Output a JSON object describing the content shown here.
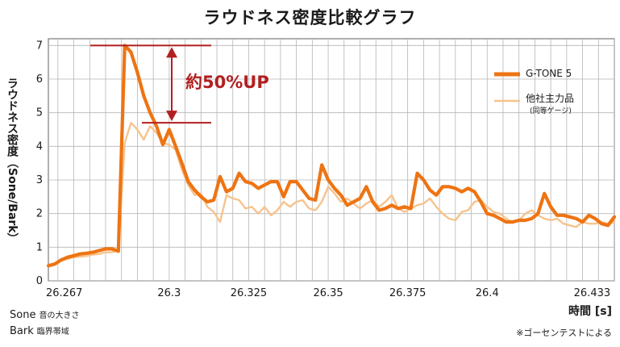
{
  "chart_data": {
    "type": "line",
    "title": "ラウドネス密度比較グラフ",
    "xlabel": "時間 [s]",
    "ylabel": "ラウドネス密度（Sone/Bark）",
    "xlim": [
      26.262,
      26.44
    ],
    "ylim": [
      0,
      7.2
    ],
    "x_ticks": [
      "26.267",
      "26.3",
      "26.325",
      "26.35",
      "26.375",
      "26.4",
      "26.433"
    ],
    "x_tick_values": [
      26.267,
      26.3,
      26.325,
      26.35,
      26.375,
      26.4,
      26.433
    ],
    "y_ticks": [
      "0",
      "1",
      "2",
      "3",
      "4",
      "5",
      "6",
      "7"
    ],
    "grid": true,
    "legend_position": "top-right",
    "annotation": "約50%UP",
    "series": [
      {
        "name": "G-TONE 5",
        "color": "#ee7413",
        "points": [
          [
            26.262,
            0.45
          ],
          [
            26.264,
            0.5
          ],
          [
            26.266,
            0.62
          ],
          [
            26.268,
            0.7
          ],
          [
            26.27,
            0.75
          ],
          [
            26.272,
            0.8
          ],
          [
            26.274,
            0.82
          ],
          [
            26.276,
            0.85
          ],
          [
            26.278,
            0.9
          ],
          [
            26.28,
            0.95
          ],
          [
            26.282,
            0.95
          ],
          [
            26.284,
            0.88
          ],
          [
            26.286,
            7.0
          ],
          [
            26.288,
            6.8
          ],
          [
            26.29,
            6.2
          ],
          [
            26.292,
            5.5
          ],
          [
            26.294,
            5.0
          ],
          [
            26.296,
            4.6
          ],
          [
            26.298,
            4.05
          ],
          [
            26.3,
            4.5
          ],
          [
            26.302,
            4.0
          ],
          [
            26.304,
            3.5
          ],
          [
            26.306,
            2.95
          ],
          [
            26.308,
            2.7
          ],
          [
            26.31,
            2.5
          ],
          [
            26.312,
            2.35
          ],
          [
            26.314,
            2.4
          ],
          [
            26.316,
            3.1
          ],
          [
            26.318,
            2.65
          ],
          [
            26.32,
            2.75
          ],
          [
            26.322,
            3.2
          ],
          [
            26.324,
            2.95
          ],
          [
            26.326,
            2.9
          ],
          [
            26.328,
            2.75
          ],
          [
            26.33,
            2.85
          ],
          [
            26.332,
            2.95
          ],
          [
            26.334,
            2.95
          ],
          [
            26.336,
            2.5
          ],
          [
            26.338,
            2.95
          ],
          [
            26.34,
            2.95
          ],
          [
            26.342,
            2.7
          ],
          [
            26.344,
            2.45
          ],
          [
            26.346,
            2.4
          ],
          [
            26.348,
            3.45
          ],
          [
            26.35,
            3.0
          ],
          [
            26.352,
            2.75
          ],
          [
            26.354,
            2.55
          ],
          [
            26.356,
            2.25
          ],
          [
            26.358,
            2.35
          ],
          [
            26.36,
            2.45
          ],
          [
            26.362,
            2.8
          ],
          [
            26.364,
            2.35
          ],
          [
            26.366,
            2.1
          ],
          [
            26.368,
            2.15
          ],
          [
            26.37,
            2.25
          ],
          [
            26.372,
            2.15
          ],
          [
            26.374,
            2.2
          ],
          [
            26.376,
            2.15
          ],
          [
            26.378,
            3.2
          ],
          [
            26.38,
            3.0
          ],
          [
            26.382,
            2.7
          ],
          [
            26.384,
            2.55
          ],
          [
            26.386,
            2.8
          ],
          [
            26.388,
            2.8
          ],
          [
            26.39,
            2.75
          ],
          [
            26.392,
            2.65
          ],
          [
            26.394,
            2.75
          ],
          [
            26.396,
            2.65
          ],
          [
            26.398,
            2.35
          ],
          [
            26.4,
            2.0
          ],
          [
            26.402,
            1.95
          ],
          [
            26.404,
            1.85
          ],
          [
            26.406,
            1.75
          ],
          [
            26.408,
            1.75
          ],
          [
            26.41,
            1.8
          ],
          [
            26.412,
            1.8
          ],
          [
            26.414,
            1.85
          ],
          [
            26.416,
            2.0
          ],
          [
            26.418,
            2.6
          ],
          [
            26.42,
            2.2
          ],
          [
            26.422,
            1.95
          ],
          [
            26.424,
            1.95
          ],
          [
            26.426,
            1.9
          ],
          [
            26.428,
            1.85
          ],
          [
            26.43,
            1.75
          ],
          [
            26.432,
            1.95
          ],
          [
            26.434,
            1.85
          ],
          [
            26.436,
            1.7
          ],
          [
            26.438,
            1.65
          ],
          [
            26.44,
            1.9
          ]
        ]
      },
      {
        "name": "他社主力品",
        "name_note": "(同等ゲージ)",
        "color": "#f6c38e",
        "points": [
          [
            26.262,
            0.45
          ],
          [
            26.264,
            0.5
          ],
          [
            26.266,
            0.6
          ],
          [
            26.268,
            0.65
          ],
          [
            26.27,
            0.7
          ],
          [
            26.272,
            0.72
          ],
          [
            26.274,
            0.74
          ],
          [
            26.276,
            0.78
          ],
          [
            26.278,
            0.8
          ],
          [
            26.28,
            0.85
          ],
          [
            26.282,
            0.85
          ],
          [
            26.284,
            0.9
          ],
          [
            26.286,
            4.1
          ],
          [
            26.288,
            4.7
          ],
          [
            26.29,
            4.5
          ],
          [
            26.292,
            4.2
          ],
          [
            26.294,
            4.6
          ],
          [
            26.296,
            4.4
          ],
          [
            26.298,
            4.1
          ],
          [
            26.3,
            4.05
          ],
          [
            26.302,
            3.9
          ],
          [
            26.304,
            3.3
          ],
          [
            26.306,
            2.85
          ],
          [
            26.308,
            2.55
          ],
          [
            26.31,
            2.6
          ],
          [
            26.312,
            2.2
          ],
          [
            26.314,
            2.05
          ],
          [
            26.316,
            1.75
          ],
          [
            26.318,
            2.55
          ],
          [
            26.32,
            2.45
          ],
          [
            26.322,
            2.4
          ],
          [
            26.324,
            2.15
          ],
          [
            26.326,
            2.2
          ],
          [
            26.328,
            2.0
          ],
          [
            26.33,
            2.2
          ],
          [
            26.332,
            1.95
          ],
          [
            26.334,
            2.1
          ],
          [
            26.336,
            2.35
          ],
          [
            26.338,
            2.2
          ],
          [
            26.34,
            2.35
          ],
          [
            26.342,
            2.4
          ],
          [
            26.344,
            2.15
          ],
          [
            26.346,
            2.1
          ],
          [
            26.348,
            2.35
          ],
          [
            26.35,
            2.8
          ],
          [
            26.352,
            2.6
          ],
          [
            26.354,
            2.35
          ],
          [
            26.356,
            2.45
          ],
          [
            26.358,
            2.3
          ],
          [
            26.36,
            2.15
          ],
          [
            26.362,
            2.3
          ],
          [
            26.364,
            2.4
          ],
          [
            26.366,
            2.2
          ],
          [
            26.368,
            2.35
          ],
          [
            26.37,
            2.55
          ],
          [
            26.372,
            2.15
          ],
          [
            26.374,
            2.05
          ],
          [
            26.376,
            2.15
          ],
          [
            26.378,
            2.25
          ],
          [
            26.38,
            2.3
          ],
          [
            26.382,
            2.45
          ],
          [
            26.384,
            2.2
          ],
          [
            26.386,
            2.0
          ],
          [
            26.388,
            1.85
          ],
          [
            26.39,
            1.8
          ],
          [
            26.392,
            2.05
          ],
          [
            26.394,
            2.1
          ],
          [
            26.396,
            2.35
          ],
          [
            26.398,
            2.4
          ],
          [
            26.4,
            2.2
          ],
          [
            26.402,
            2.05
          ],
          [
            26.404,
            2.0
          ],
          [
            26.406,
            1.85
          ],
          [
            26.408,
            1.75
          ],
          [
            26.41,
            1.8
          ],
          [
            26.412,
            2.0
          ],
          [
            26.414,
            2.1
          ],
          [
            26.416,
            1.95
          ],
          [
            26.418,
            1.85
          ],
          [
            26.42,
            1.8
          ],
          [
            26.422,
            1.85
          ],
          [
            26.424,
            1.7
          ],
          [
            26.426,
            1.65
          ],
          [
            26.428,
            1.6
          ],
          [
            26.43,
            1.75
          ],
          [
            26.432,
            1.7
          ],
          [
            26.434,
            1.7
          ],
          [
            26.436,
            1.75
          ],
          [
            26.438,
            1.7
          ],
          [
            26.44,
            1.75
          ]
        ]
      }
    ]
  },
  "units": [
    {
      "term": "Sone",
      "meaning": "音の大きさ"
    },
    {
      "term": "Bark",
      "meaning": "臨界帯域"
    }
  ],
  "note": "※ゴーセンテストによる"
}
